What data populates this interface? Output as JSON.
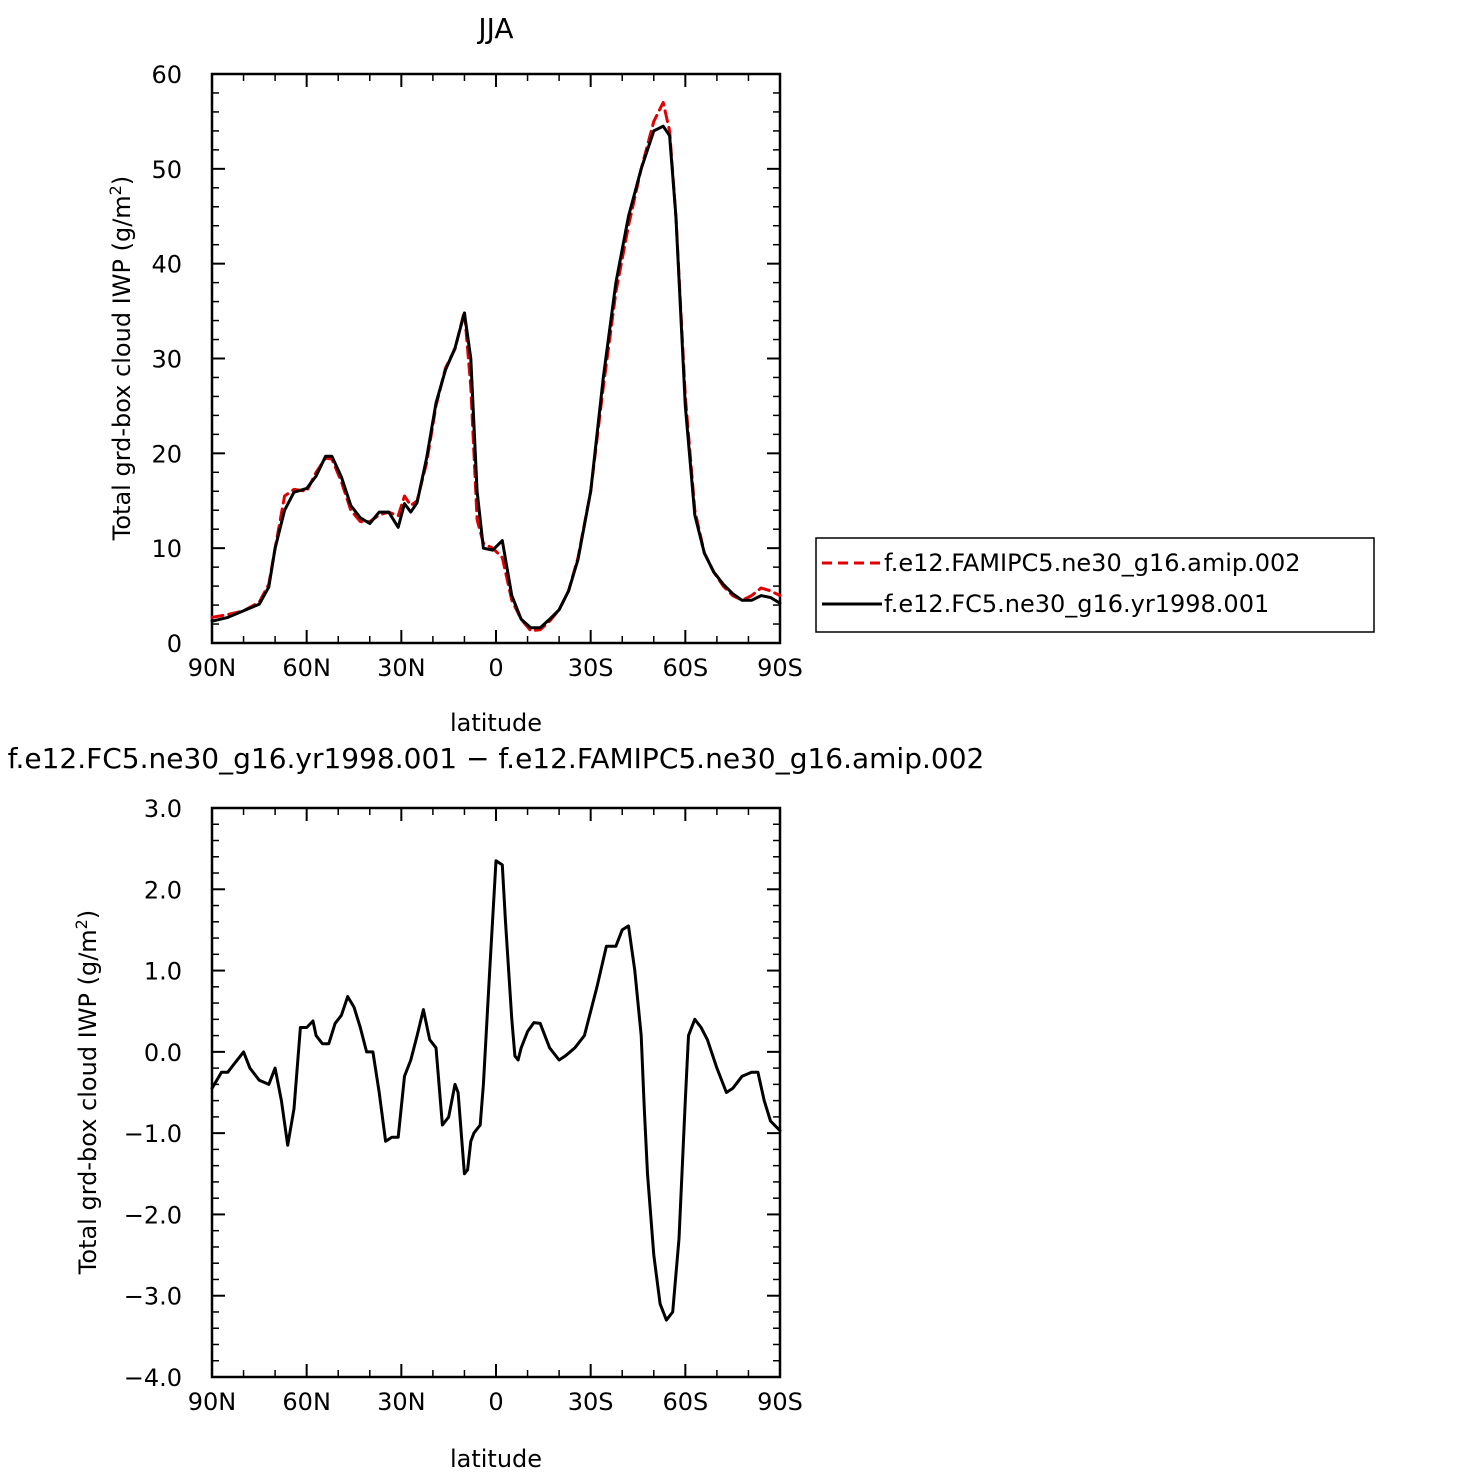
{
  "chart_data": [
    {
      "type": "line",
      "title": "JJA",
      "xlabel": "latitude",
      "ylabel": "Total grd-box cloud IWP (g/m",
      "ylabel_sup": "2",
      "ylabel_end": ")",
      "xlim": [
        90,
        -90
      ],
      "ylim": [
        0,
        60
      ],
      "xticks": [
        90,
        60,
        30,
        0,
        -30,
        -60,
        -90
      ],
      "xtick_labels": [
        "90N",
        "60N",
        "30N",
        "0",
        "30S",
        "60S",
        "90S"
      ],
      "yticks": [
        0,
        10,
        20,
        30,
        40,
        50,
        60
      ],
      "ytick_labels": [
        "0",
        "10",
        "20",
        "30",
        "40",
        "50",
        "60"
      ],
      "legend": "right",
      "series": [
        {
          "name": "f.e12.FAMIPC5.ne30_g16.amip.002",
          "color": "#e00000",
          "style": "dashed",
          "x": [
            90,
            85,
            80,
            75,
            72,
            70,
            67,
            64,
            60,
            57,
            54,
            52,
            49,
            46,
            43,
            40,
            37,
            34,
            31,
            29,
            27,
            25,
            22,
            19,
            16,
            13,
            10,
            8,
            6,
            4,
            1,
            -2,
            -5,
            -8,
            -11,
            -14,
            -17,
            -20,
            -23,
            -26,
            -30,
            -34,
            -38,
            -42,
            -46,
            -50,
            -53,
            -55,
            -57,
            -60,
            -63,
            -66,
            -69,
            -72,
            -75,
            -78,
            -81,
            -84,
            -87,
            -90
          ],
          "y": [
            2.7,
            3.0,
            3.4,
            4.3,
            6.2,
            10.0,
            15.5,
            16.2,
            16.0,
            18.0,
            19.5,
            19.4,
            17.0,
            14.0,
            12.8,
            12.8,
            13.5,
            13.8,
            13.4,
            15.5,
            14.5,
            15.0,
            19.0,
            25.0,
            29.0,
            31.0,
            35.0,
            27.0,
            13.0,
            10.5,
            10.0,
            9.0,
            4.5,
            2.5,
            1.3,
            1.4,
            2.3,
            3.5,
            5.5,
            9.0,
            16.0,
            27.0,
            37.0,
            44.0,
            50.0,
            55.0,
            57.0,
            54.0,
            45.0,
            26.0,
            14.0,
            9.5,
            7.5,
            6.0,
            5.0,
            4.5,
            5.0,
            5.8,
            5.5,
            5.0
          ]
        },
        {
          "name": "f.e12.FC5.ne30_g16.yr1998.001",
          "color": "#000000",
          "style": "solid",
          "x": [
            90,
            85,
            80,
            75,
            72,
            70,
            67,
            64,
            60,
            57,
            54,
            52,
            49,
            46,
            43,
            40,
            37,
            34,
            31,
            29,
            27,
            25,
            22,
            19,
            16,
            13,
            10,
            8,
            6,
            4,
            1,
            -2,
            -5,
            -8,
            -11,
            -14,
            -17,
            -20,
            -23,
            -26,
            -30,
            -34,
            -38,
            -42,
            -46,
            -50,
            -53,
            -55,
            -57,
            -60,
            -63,
            -66,
            -69,
            -72,
            -75,
            -78,
            -81,
            -84,
            -87,
            -90
          ],
          "y": [
            2.3,
            2.7,
            3.4,
            4.1,
            5.9,
            10.0,
            14.0,
            15.9,
            16.3,
            17.6,
            19.7,
            19.7,
            17.5,
            14.5,
            13.2,
            12.6,
            13.8,
            13.8,
            12.2,
            14.7,
            13.8,
            14.8,
            19.5,
            25.3,
            28.8,
            31.1,
            34.8,
            30.0,
            16.0,
            10.0,
            9.8,
            10.8,
            5.0,
            2.5,
            1.6,
            1.6,
            2.5,
            3.5,
            5.5,
            8.8,
            16.0,
            28.0,
            38.0,
            45.0,
            50.0,
            54.0,
            54.5,
            53.5,
            45.0,
            25.0,
            13.5,
            9.5,
            7.5,
            6.2,
            5.2,
            4.5,
            4.5,
            5.0,
            4.8,
            4.2
          ]
        }
      ]
    },
    {
      "type": "line",
      "title": "f.e12.FC5.ne30_g16.yr1998.001 − f.e12.FAMIPC5.ne30_g16.amip.002",
      "xlabel": "latitude",
      "ylabel": "Total grd-box cloud IWP (g/m",
      "ylabel_sup": "2",
      "ylabel_end": ")",
      "xlim": [
        90,
        -90
      ],
      "ylim": [
        -4.0,
        3.0
      ],
      "xticks": [
        90,
        60,
        30,
        0,
        -30,
        -60,
        -90
      ],
      "xtick_labels": [
        "90N",
        "60N",
        "30N",
        "0",
        "30S",
        "60S",
        "90S"
      ],
      "yticks": [
        -4.0,
        -3.0,
        -2.0,
        -1.0,
        0.0,
        1.0,
        2.0,
        3.0
      ],
      "ytick_labels": [
        "−4.0",
        "−3.0",
        "−2.0",
        "−1.0",
        "0.0",
        "1.0",
        "2.0",
        "3.0"
      ],
      "series": [
        {
          "color": "#000000",
          "style": "solid",
          "x": [
            90,
            87,
            85,
            83,
            80,
            78,
            75,
            72,
            70,
            68,
            66,
            64,
            62,
            60,
            58,
            57,
            55,
            53,
            51,
            49,
            47,
            45,
            43,
            41,
            39,
            37,
            35,
            33,
            31,
            29,
            27,
            25,
            23,
            21,
            19,
            17,
            15,
            13,
            12,
            10,
            9,
            8,
            7,
            5,
            4,
            2,
            0,
            -2,
            -3,
            -5,
            -6,
            -7,
            -8,
            -10,
            -12,
            -14,
            -17,
            -20,
            -22,
            -25,
            -28,
            -30,
            -32,
            -35,
            -38,
            -40,
            -42,
            -44,
            -46,
            -47,
            -48,
            -50,
            -52,
            -54,
            -56,
            -58,
            -60,
            -61,
            -63,
            -65,
            -67,
            -70,
            -73,
            -75,
            -78,
            -81,
            -83,
            -85,
            -87,
            -90
          ],
          "y": [
            -0.45,
            -0.25,
            -0.25,
            -0.15,
            0.0,
            -0.2,
            -0.35,
            -0.4,
            -0.2,
            -0.6,
            -1.15,
            -0.7,
            0.3,
            0.3,
            0.38,
            0.2,
            0.1,
            0.1,
            0.35,
            0.45,
            0.68,
            0.55,
            0.3,
            0.0,
            0.0,
            -0.5,
            -1.1,
            -1.05,
            -1.05,
            -0.3,
            -0.1,
            0.2,
            0.52,
            0.15,
            0.05,
            -0.9,
            -0.8,
            -0.4,
            -0.5,
            -1.5,
            -1.45,
            -1.1,
            -1.0,
            -0.9,
            -0.4,
            1.0,
            2.35,
            2.3,
            1.6,
            0.4,
            -0.05,
            -0.1,
            0.05,
            0.25,
            0.36,
            0.35,
            0.05,
            -0.1,
            -0.05,
            0.05,
            0.2,
            0.5,
            0.8,
            1.3,
            1.3,
            1.5,
            1.55,
            1.0,
            0.2,
            -0.7,
            -1.5,
            -2.5,
            -3.1,
            -3.3,
            -3.2,
            -2.3,
            -0.6,
            0.2,
            0.4,
            0.3,
            0.15,
            -0.2,
            -0.5,
            -0.45,
            -0.3,
            -0.25,
            -0.25,
            -0.6,
            -0.85,
            -0.97
          ]
        }
      ]
    }
  ]
}
